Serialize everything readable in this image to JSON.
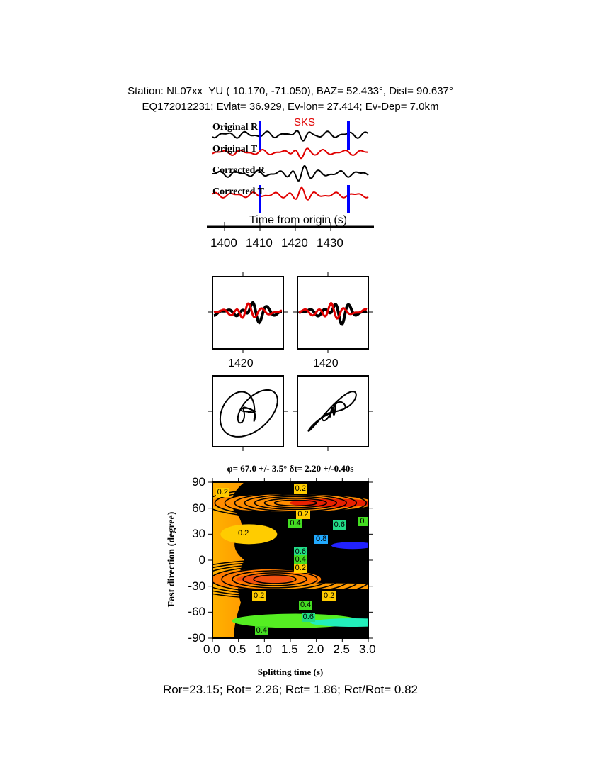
{
  "header": {
    "line1": "Station: NL07xx_YU (  10.170,  -71.050), BAZ=   52.433°, Dist=   90.637°",
    "line2": "EQ172012231; Evlat=  36.929, Ev-lon=  27.414; Ev-Dep=  7.0km"
  },
  "chart_data": [
    {
      "type": "line",
      "name": "waveforms",
      "phase_label": "SKS",
      "traces": [
        "Original R",
        "Original T",
        "Corrected R",
        "Corrected T"
      ],
      "trace_colors": {
        "R": "#000000",
        "T": "#e00000"
      },
      "window_markers_s": [
        1410,
        1435
      ],
      "window_color": "#0000ff",
      "xlabel": "Time from origin (s)",
      "xticks": [
        "1400",
        "1410",
        "1420",
        "1430"
      ],
      "xlim": [
        1397,
        1440
      ]
    },
    {
      "type": "line",
      "name": "fast-slow-components",
      "panels": [
        {
          "xtick": "1420"
        },
        {
          "xtick": "1420"
        }
      ],
      "colors": [
        "#000000",
        "#e00000"
      ]
    },
    {
      "type": "scatter",
      "name": "particle-motion",
      "panels": 2
    },
    {
      "type": "heatmap",
      "title": "φ= 67.0 +/- 3.5° δt= 2.20 +/-0.40s",
      "xlabel": "Splitting time (s)",
      "ylabel": "Fast direction (degree)",
      "xlim": [
        0,
        3
      ],
      "ylim": [
        -90,
        90
      ],
      "xticks": [
        "0.0",
        "0.5",
        "1.0",
        "1.5",
        "2.0",
        "2.5",
        "3.0"
      ],
      "yticks": [
        "90",
        "60",
        "30",
        "0",
        "-30",
        "-60",
        "-90"
      ],
      "best_fit": {
        "phi": 67.0,
        "phi_err": 3.5,
        "dt": 2.2,
        "dt_err": 0.4
      },
      "contour_labels": [
        {
          "text": "0.2",
          "x": 0.2,
          "y": 78
        },
        {
          "text": "0.2",
          "x": 1.7,
          "y": 82
        },
        {
          "text": "0.2",
          "x": 1.75,
          "y": 52
        },
        {
          "text": "0.4",
          "x": 1.6,
          "y": 42
        },
        {
          "text": "0.6",
          "x": 2.45,
          "y": 40
        },
        {
          "text": "0.",
          "x": 2.95,
          "y": 44
        },
        {
          "text": "0.2",
          "x": 0.6,
          "y": 30
        },
        {
          "text": "0.8",
          "x": 2.1,
          "y": 24
        },
        {
          "text": "0.6",
          "x": 1.7,
          "y": 9
        },
        {
          "text": "0.4",
          "x": 1.7,
          "y": 0
        },
        {
          "text": "0.2",
          "x": 1.7,
          "y": -10
        },
        {
          "text": "0.2",
          "x": 0.9,
          "y": -42
        },
        {
          "text": "0.2",
          "x": 2.25,
          "y": -42
        },
        {
          "text": "0.4",
          "x": 1.8,
          "y": -52
        },
        {
          "text": "0.6",
          "x": 1.85,
          "y": -66
        },
        {
          "text": "0.4",
          "x": 0.95,
          "y": -82
        }
      ]
    }
  ],
  "footer": "Ror=23.15; Rot= 2.26; Rct= 1.86; Rct/Rot= 0.82"
}
